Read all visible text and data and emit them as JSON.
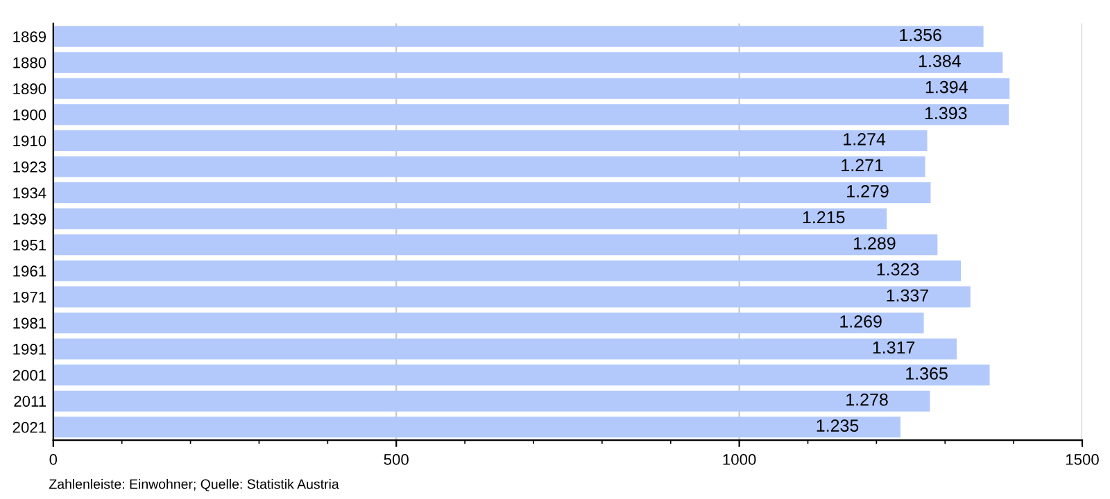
{
  "chart_data": {
    "type": "bar",
    "orientation": "horizontal",
    "categories": [
      "1869",
      "1880",
      "1890",
      "1900",
      "1910",
      "1923",
      "1934",
      "1939",
      "1951",
      "1961",
      "1971",
      "1981",
      "1991",
      "2001",
      "2011",
      "2021"
    ],
    "values": [
      1356,
      1384,
      1394,
      1393,
      1274,
      1271,
      1279,
      1215,
      1289,
      1323,
      1337,
      1269,
      1317,
      1365,
      1278,
      1235
    ],
    "value_labels": [
      "1.356",
      "1.384",
      "1.394",
      "1.393",
      "1.274",
      "1.271",
      "1.279",
      "1.215",
      "1.289",
      "1.323",
      "1.337",
      "1.269",
      "1.317",
      "1.365",
      "1.278",
      "1.235"
    ],
    "color": "#b3c9fc",
    "xlim": [
      0,
      1500
    ],
    "xticks": [
      0,
      500,
      1000,
      1500
    ],
    "grid": "x",
    "annotations": [
      "Zahlenleiste: Einwohner; Quelle: Statistik Austria"
    ]
  }
}
